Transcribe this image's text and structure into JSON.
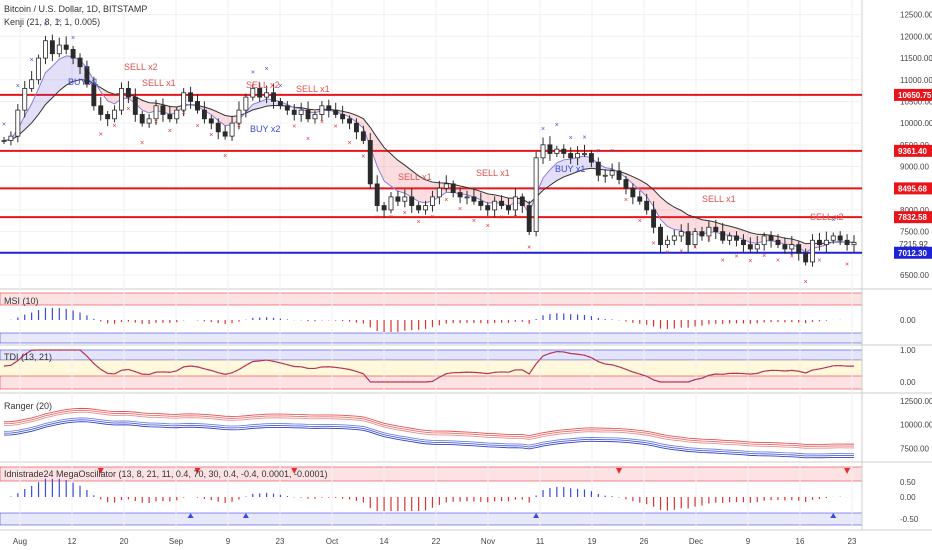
{
  "header": {
    "title": "Bitcoin / U.S. Dollar, 1D, BITSTAMP",
    "indicator": "Kenji (21, 8, 1, 1, 0.005)"
  },
  "panes": {
    "msi": "MSI (10)",
    "tdi": "TDI (13, 21)",
    "ranger": "Ranger (20)",
    "mega": "Idnistrade24 MegaOscillator (13, 8, 21, 11, 0.4, 70, 30, 0.4, -0.4, 0.0001, -0.0001)"
  },
  "x_labels": [
    "Aug",
    "12",
    "20",
    "Sep",
    "9",
    "23",
    "Oct",
    "14",
    "22",
    "Nov",
    "11",
    "19",
    "26",
    "Dec",
    "9",
    "16",
    "23"
  ],
  "price_axis": [
    "12500.00",
    "12000.00",
    "11500.00",
    "11000.00",
    "10500.00",
    "10000.00",
    "9500.00",
    "9000.00",
    "8500.00",
    "8000.00",
    "7500.00",
    "7000.00",
    "6500.00"
  ],
  "price_level_labels": [
    "10650.75",
    "9361.40",
    "8495.68",
    "7832.58",
    "7215.92",
    "7012.30"
  ],
  "msi_axis": [
    "0.00"
  ],
  "tdi_axis": [
    "1.00",
    "0.00"
  ],
  "ranger_axis": [
    "12500.00",
    "10000.00",
    "7500.00"
  ],
  "mega_axis": [
    "0.50",
    "0.00",
    "-0.50"
  ],
  "signals": {
    "sell_x2_a": "SELL x2",
    "sell_x1_a": "SELL x1",
    "buy_x1": "BUY x1",
    "buy_x2": "BUY x2",
    "sell_x2_b": "SELL x2",
    "sell_x1_b": "SELL x1",
    "sell_x1_c": "SELL x1",
    "buy_x1_b": "BUY x1",
    "sell_x1_d": "SELL x1",
    "sell_x2_c": "SELL x2"
  },
  "colors": {
    "up": "#2a2a2a",
    "down": "#2a2a2a",
    "support": "#1e22d8",
    "resistance": "#e8141a",
    "sell_text": "#e05050",
    "buy_text": "#3c4ad8"
  },
  "chart_data": {
    "type": "candlestick",
    "x_axis_labels": [
      "Aug",
      "12",
      "20",
      "Sep",
      "9",
      "23",
      "Oct",
      "14",
      "22",
      "Nov",
      "11",
      "19",
      "26",
      "Dec",
      "9",
      "16",
      "23"
    ],
    "y_range": [
      6200,
      12700
    ],
    "horizontal_levels": [
      {
        "value": 10650.75,
        "color": "red"
      },
      {
        "value": 9361.4,
        "color": "red"
      },
      {
        "value": 8495.68,
        "color": "red"
      },
      {
        "value": 7832.58,
        "color": "red"
      },
      {
        "value": 7012.3,
        "color": "blue"
      }
    ],
    "last_price": 7215.92,
    "close_series": [
      9600,
      9700,
      10300,
      10800,
      11000,
      11500,
      11900,
      11600,
      11800,
      11700,
      11500,
      11300,
      10900,
      10400,
      10200,
      10100,
      10300,
      10800,
      10600,
      10200,
      10000,
      10100,
      10400,
      10200,
      10100,
      10300,
      10700,
      10500,
      10300,
      10100,
      10000,
      9800,
      9700,
      10000,
      10300,
      10600,
      10800,
      10600,
      10700,
      10500,
      10400,
      10300,
      10200,
      10300,
      10100,
      10200,
      10400,
      10300,
      10200,
      10100,
      10000,
      9800,
      9600,
      8600,
      8100,
      8000,
      8300,
      8200,
      8300,
      8100,
      8000,
      8100,
      8300,
      8500,
      8600,
      8400,
      8300,
      8300,
      8200,
      8100,
      8000,
      8200,
      8100,
      8000,
      8300,
      8100,
      7500,
      9200,
      9500,
      9300,
      9400,
      9300,
      9200,
      9300,
      9300,
      9100,
      8800,
      8800,
      8900,
      8700,
      8500,
      8300,
      8200,
      8000,
      7600,
      7200,
      7300,
      7400,
      7500,
      7200,
      7500,
      7400,
      7600,
      7500,
      7300,
      7400,
      7300,
      7200,
      7100,
      7200,
      7400,
      7300,
      7200,
      7100,
      7200,
      7000,
      6800,
      7300,
      7200,
      7300,
      7400,
      7300,
      7200,
      7250
    ]
  }
}
